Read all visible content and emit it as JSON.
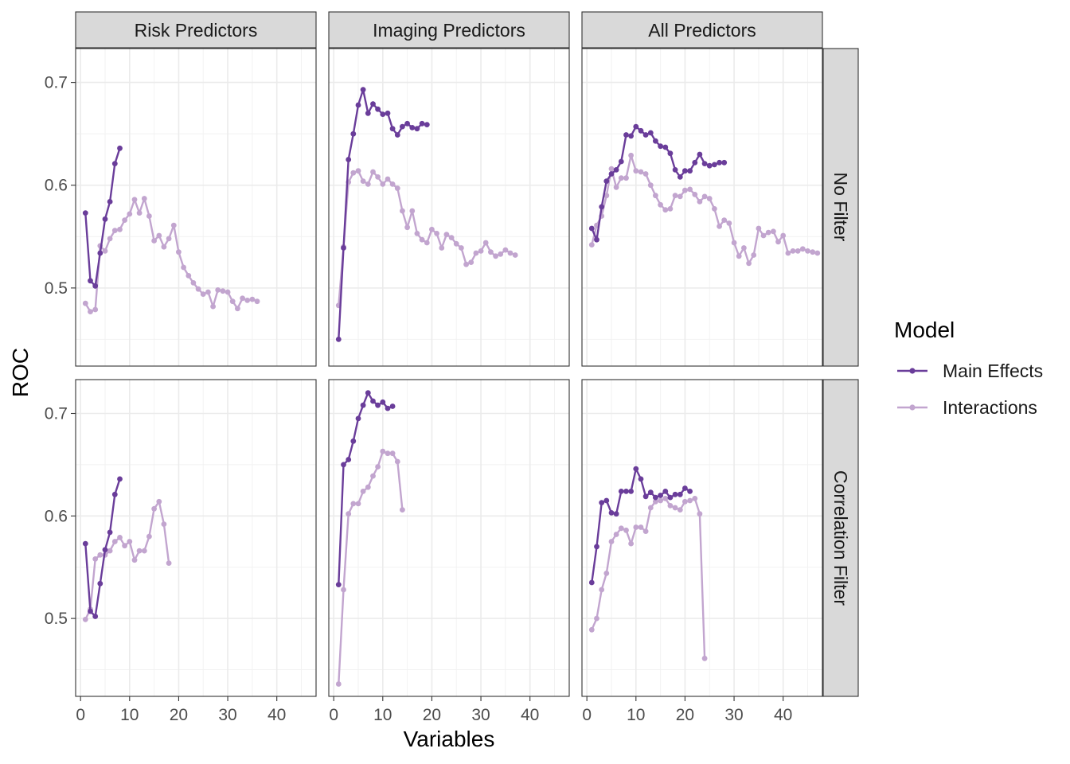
{
  "chart_data": {
    "type": "line",
    "xlabel": "Variables",
    "ylabel": "ROC",
    "xlim": [
      -1,
      48
    ],
    "ylim": [
      0.424,
      0.733
    ],
    "x_ticks": [
      0,
      10,
      20,
      30,
      40
    ],
    "y_ticks": [
      0.5,
      0.6,
      0.7
    ],
    "column_facets": [
      "Risk Predictors",
      "Imaging Predictors",
      "All Predictors"
    ],
    "row_facets": [
      "No Filter",
      "Correlation Filter"
    ],
    "grid": true,
    "legend": {
      "title": "Model",
      "position": "right",
      "entries": [
        {
          "label": "Main Effects",
          "color": "#6a3d9a"
        },
        {
          "label": "Interactions",
          "color": "#c2a5cf"
        }
      ]
    },
    "panels": [
      {
        "column": "Risk Predictors",
        "row": "No Filter",
        "series": [
          {
            "name": "Main Effects",
            "x": [
              1,
              2,
              3,
              4,
              5,
              6,
              7,
              8
            ],
            "y": [
              0.573,
              0.507,
              0.502,
              0.534,
              0.567,
              0.584,
              0.621,
              0.636
            ]
          },
          {
            "name": "Interactions",
            "x": [
              1,
              2,
              3,
              4,
              5,
              6,
              7,
              8,
              9,
              10,
              11,
              12,
              13,
              14,
              15,
              16,
              17,
              18,
              19,
              20,
              21,
              22,
              23,
              24,
              25,
              26,
              27,
              28,
              29,
              30,
              31,
              32,
              33,
              34,
              35,
              36
            ],
            "y": [
              0.485,
              0.477,
              0.479,
              0.541,
              0.536,
              0.548,
              0.556,
              0.557,
              0.566,
              0.572,
              0.586,
              0.573,
              0.587,
              0.57,
              0.546,
              0.551,
              0.54,
              0.548,
              0.561,
              0.535,
              0.52,
              0.512,
              0.505,
              0.499,
              0.494,
              0.496,
              0.482,
              0.498,
              0.497,
              0.496,
              0.487,
              0.48,
              0.49,
              0.488,
              0.489,
              0.487
            ]
          }
        ]
      },
      {
        "column": "Imaging Predictors",
        "row": "No Filter",
        "series": [
          {
            "name": "Main Effects",
            "x": [
              1,
              2,
              3,
              4,
              5,
              6,
              7,
              8,
              9,
              10,
              11,
              12,
              13,
              14,
              15,
              16,
              17,
              18,
              19
            ],
            "y": [
              0.45,
              0.539,
              0.625,
              0.65,
              0.678,
              0.693,
              0.67,
              0.679,
              0.674,
              0.669,
              0.67,
              0.655,
              0.649,
              0.657,
              0.66,
              0.656,
              0.655,
              0.66,
              0.659
            ]
          },
          {
            "name": "Interactions",
            "x": [
              1,
              2,
              3,
              4,
              5,
              6,
              7,
              8,
              9,
              10,
              11,
              12,
              13,
              14,
              15,
              16,
              17,
              18,
              19,
              20,
              21,
              22,
              23,
              24,
              25,
              26,
              27,
              28,
              29,
              30,
              31,
              32,
              33,
              34,
              35,
              36,
              37
            ],
            "y": [
              0.483,
              0.54,
              0.603,
              0.612,
              0.614,
              0.604,
              0.601,
              0.613,
              0.608,
              0.601,
              0.606,
              0.601,
              0.597,
              0.575,
              0.559,
              0.575,
              0.553,
              0.547,
              0.544,
              0.557,
              0.553,
              0.539,
              0.552,
              0.549,
              0.543,
              0.539,
              0.523,
              0.525,
              0.534,
              0.536,
              0.544,
              0.535,
              0.531,
              0.533,
              0.537,
              0.534,
              0.532
            ]
          }
        ]
      },
      {
        "column": "All Predictors",
        "row": "No Filter",
        "series": [
          {
            "name": "Main Effects",
            "x": [
              1,
              2,
              3,
              4,
              5,
              6,
              7,
              8,
              9,
              10,
              11,
              12,
              13,
              14,
              15,
              16,
              17,
              18,
              19,
              20,
              21,
              22,
              23,
              24,
              25,
              26,
              27,
              28
            ],
            "y": [
              0.558,
              0.547,
              0.579,
              0.604,
              0.611,
              0.615,
              0.623,
              0.649,
              0.648,
              0.657,
              0.653,
              0.649,
              0.651,
              0.643,
              0.638,
              0.637,
              0.631,
              0.615,
              0.608,
              0.614,
              0.614,
              0.622,
              0.63,
              0.621,
              0.619,
              0.62,
              0.622,
              0.622
            ]
          },
          {
            "name": "Interactions",
            "x": [
              1,
              2,
              3,
              4,
              5,
              6,
              7,
              8,
              9,
              10,
              11,
              12,
              13,
              14,
              15,
              16,
              17,
              18,
              19,
              20,
              21,
              22,
              23,
              24,
              25,
              26,
              27,
              28,
              29,
              30,
              31,
              32,
              33,
              34,
              35,
              36,
              37,
              38,
              39,
              40,
              41,
              42,
              43,
              44,
              45,
              46,
              47
            ],
            "y": [
              0.542,
              0.561,
              0.57,
              0.59,
              0.616,
              0.598,
              0.607,
              0.607,
              0.629,
              0.614,
              0.613,
              0.611,
              0.6,
              0.59,
              0.581,
              0.576,
              0.577,
              0.59,
              0.589,
              0.595,
              0.596,
              0.591,
              0.584,
              0.589,
              0.587,
              0.577,
              0.56,
              0.566,
              0.563,
              0.544,
              0.531,
              0.539,
              0.524,
              0.532,
              0.558,
              0.551,
              0.554,
              0.555,
              0.545,
              0.551,
              0.534,
              0.536,
              0.536,
              0.538,
              0.536,
              0.535,
              0.534
            ]
          }
        ]
      },
      {
        "column": "Risk Predictors",
        "row": "Correlation Filter",
        "series": [
          {
            "name": "Main Effects",
            "x": [
              1,
              2,
              3,
              4,
              5,
              6,
              7,
              8
            ],
            "y": [
              0.573,
              0.507,
              0.502,
              0.534,
              0.567,
              0.584,
              0.621,
              0.636
            ]
          },
          {
            "name": "Interactions",
            "x": [
              1,
              2,
              3,
              4,
              5,
              6,
              7,
              8,
              9,
              10,
              11,
              12,
              13,
              14,
              15,
              16,
              17,
              18
            ],
            "y": [
              0.499,
              0.509,
              0.558,
              0.562,
              0.562,
              0.566,
              0.575,
              0.579,
              0.571,
              0.575,
              0.557,
              0.566,
              0.566,
              0.58,
              0.607,
              0.614,
              0.592,
              0.554
            ]
          }
        ]
      },
      {
        "column": "Imaging Predictors",
        "row": "Correlation Filter",
        "series": [
          {
            "name": "Main Effects",
            "x": [
              1,
              2,
              3,
              4,
              5,
              6,
              7,
              8,
              9,
              10,
              11,
              12
            ],
            "y": [
              0.533,
              0.65,
              0.655,
              0.673,
              0.695,
              0.708,
              0.72,
              0.712,
              0.708,
              0.711,
              0.705,
              0.707
            ]
          },
          {
            "name": "Interactions",
            "x": [
              1,
              2,
              3,
              4,
              5,
              6,
              7,
              8,
              9,
              10,
              11,
              12,
              13,
              14
            ],
            "y": [
              0.436,
              0.528,
              0.602,
              0.612,
              0.612,
              0.624,
              0.628,
              0.639,
              0.648,
              0.663,
              0.661,
              0.661,
              0.653,
              0.606
            ]
          }
        ]
      },
      {
        "column": "All Predictors",
        "row": "Correlation Filter",
        "series": [
          {
            "name": "Main Effects",
            "x": [
              1,
              2,
              3,
              4,
              5,
              6,
              7,
              8,
              9,
              10,
              11,
              12,
              13,
              14,
              15,
              16,
              17,
              18,
              19,
              20,
              21
            ],
            "y": [
              0.535,
              0.57,
              0.613,
              0.615,
              0.603,
              0.602,
              0.624,
              0.624,
              0.624,
              0.646,
              0.636,
              0.619,
              0.623,
              0.618,
              0.62,
              0.624,
              0.618,
              0.621,
              0.621,
              0.627,
              0.624
            ]
          },
          {
            "name": "Interactions",
            "x": [
              1,
              2,
              3,
              4,
              5,
              6,
              7,
              8,
              9,
              10,
              11,
              12,
              13,
              14,
              15,
              16,
              17,
              18,
              19,
              20,
              21,
              22,
              23,
              24
            ],
            "y": [
              0.489,
              0.5,
              0.528,
              0.544,
              0.575,
              0.582,
              0.588,
              0.586,
              0.573,
              0.589,
              0.589,
              0.585,
              0.608,
              0.614,
              0.615,
              0.617,
              0.61,
              0.608,
              0.606,
              0.614,
              0.615,
              0.617,
              0.602,
              0.461
            ]
          }
        ]
      }
    ]
  }
}
